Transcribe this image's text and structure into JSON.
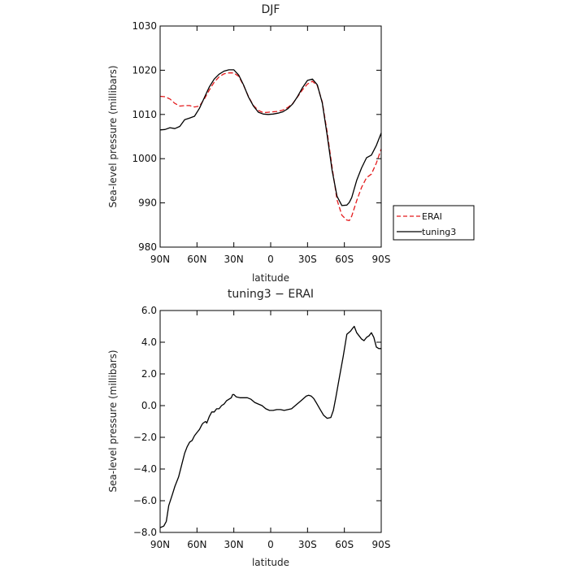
{
  "chart_data": [
    {
      "type": "line",
      "title": "DJF",
      "xlabel": "latitude",
      "ylabel": "Sea-level pressure (millibars)",
      "xlim": [
        90,
        -90
      ],
      "ylim": [
        980,
        1030
      ],
      "xticks": [
        90,
        60,
        30,
        0,
        -30,
        -60,
        -90
      ],
      "xtick_labels": [
        "90N",
        "60N",
        "30N",
        "0",
        "30S",
        "60S",
        "90S"
      ],
      "yticks": [
        980,
        990,
        1000,
        1010,
        1020,
        1030
      ],
      "ytick_labels": [
        "980",
        "990",
        "1000",
        "1010",
        "1020",
        "1030"
      ],
      "grid": false,
      "legend": "right",
      "series": [
        {
          "name": "ERAI",
          "color": "#e41a1c",
          "dash": "dashed",
          "x": [
            90,
            86,
            82,
            78,
            74,
            70,
            66,
            62,
            58,
            54,
            50,
            46,
            42,
            38,
            34,
            30,
            26,
            22,
            18,
            14,
            10,
            6,
            2,
            -2,
            -6,
            -10,
            -14,
            -18,
            -22,
            -26,
            -30,
            -34,
            -38,
            -42,
            -46,
            -50,
            -54,
            -58,
            -62,
            -64,
            -66,
            -70,
            -74,
            -78,
            -82,
            -86,
            -90
          ],
          "values": [
            1014.1,
            1014.0,
            1013.5,
            1012.5,
            1011.9,
            1012.0,
            1012.0,
            1011.7,
            1011.9,
            1013.5,
            1015.5,
            1017.3,
            1018.5,
            1019.2,
            1019.4,
            1019.4,
            1018.6,
            1016.5,
            1014.0,
            1012.0,
            1010.9,
            1010.4,
            1010.5,
            1010.6,
            1010.7,
            1011.0,
            1011.6,
            1012.5,
            1014.0,
            1015.6,
            1016.9,
            1017.5,
            1016.5,
            1012.8,
            1006.0,
            998.0,
            990.7,
            987.2,
            986.1,
            986.0,
            987.0,
            990.5,
            993.5,
            995.7,
            996.5,
            999.0,
            1002.2
          ]
        },
        {
          "name": "tuning3",
          "color": "#000000",
          "dash": "solid",
          "x": [
            90,
            86,
            82,
            78,
            74,
            70,
            66,
            62,
            58,
            54,
            50,
            46,
            42,
            38,
            34,
            30,
            26,
            22,
            18,
            14,
            10,
            6,
            2,
            -2,
            -6,
            -10,
            -14,
            -18,
            -22,
            -26,
            -30,
            -34,
            -38,
            -42,
            -46,
            -50,
            -54,
            -58,
            -62,
            -64,
            -66,
            -70,
            -74,
            -78,
            -82,
            -86,
            -90
          ],
          "values": [
            1006.5,
            1006.6,
            1007.0,
            1006.8,
            1007.3,
            1008.8,
            1009.2,
            1009.6,
            1011.4,
            1013.8,
            1016.2,
            1018.0,
            1019.1,
            1019.8,
            1020.1,
            1020.1,
            1018.9,
            1016.6,
            1013.9,
            1011.9,
            1010.5,
            1010.1,
            1010.0,
            1010.1,
            1010.3,
            1010.6,
            1011.3,
            1012.4,
            1014.1,
            1016.1,
            1017.7,
            1018.0,
            1016.7,
            1012.6,
            1005.3,
            997.3,
            991.5,
            989.4,
            989.5,
            990.1,
            991.2,
            995.1,
            997.9,
            1000.2,
            1000.8,
            1003.0,
            1005.8
          ]
        }
      ]
    },
    {
      "type": "line",
      "title": "tuning3 − ERAI",
      "xlabel": "latitude",
      "ylabel": "Sea-level pressure (millibars)",
      "xlim": [
        90,
        -90
      ],
      "ylim": [
        -8,
        6
      ],
      "xticks": [
        90,
        60,
        30,
        0,
        -30,
        -60,
        -90
      ],
      "xtick_labels": [
        "90N",
        "60N",
        "30N",
        "0",
        "30S",
        "60S",
        "90S"
      ],
      "yticks": [
        -8,
        -6,
        -4,
        -2,
        0,
        2,
        4,
        6
      ],
      "ytick_labels": [
        "−8.0",
        "−6.0",
        "−4.0",
        "−2.0",
        "0.0",
        "2.0",
        "4.0",
        "6.0"
      ],
      "grid": false,
      "series": [
        {
          "color": "#000000",
          "x": [
            90,
            87,
            85,
            83,
            80,
            78,
            75,
            72,
            70,
            68,
            66,
            64,
            62,
            60,
            58,
            56,
            55,
            53,
            52,
            50,
            48,
            46,
            44,
            42,
            40,
            38,
            36,
            34,
            32,
            31,
            30,
            28,
            25,
            22,
            19,
            16,
            13,
            10,
            7,
            4,
            1,
            -2,
            -5,
            -8,
            -11,
            -14,
            -17,
            -20,
            -23,
            -26,
            -29,
            -31,
            -33,
            -35,
            -37,
            -40,
            -43,
            -46,
            -49,
            -51,
            -53,
            -56,
            -59,
            -62,
            -65,
            -67,
            -68,
            -70,
            -72,
            -74,
            -76,
            -78,
            -80,
            -82,
            -84,
            -86,
            -88,
            -90
          ],
          "values": [
            -7.7,
            -7.6,
            -7.3,
            -6.3,
            -5.6,
            -5.1,
            -4.5,
            -3.6,
            -3.0,
            -2.6,
            -2.3,
            -2.2,
            -1.9,
            -1.7,
            -1.5,
            -1.2,
            -1.1,
            -1.0,
            -1.1,
            -0.7,
            -0.4,
            -0.4,
            -0.2,
            -0.2,
            0.0,
            0.1,
            0.3,
            0.4,
            0.5,
            0.7,
            0.7,
            0.55,
            0.5,
            0.5,
            0.5,
            0.4,
            0.2,
            0.1,
            0.0,
            -0.2,
            -0.3,
            -0.3,
            -0.25,
            -0.25,
            -0.3,
            -0.25,
            -0.2,
            0.0,
            0.2,
            0.4,
            0.6,
            0.65,
            0.6,
            0.45,
            0.2,
            -0.2,
            -0.6,
            -0.8,
            -0.75,
            -0.3,
            0.5,
            1.8,
            3.1,
            4.5,
            4.7,
            4.9,
            5.0,
            4.6,
            4.4,
            4.2,
            4.1,
            4.3,
            4.4,
            4.6,
            4.3,
            3.7,
            3.6,
            3.6
          ]
        }
      ]
    }
  ]
}
